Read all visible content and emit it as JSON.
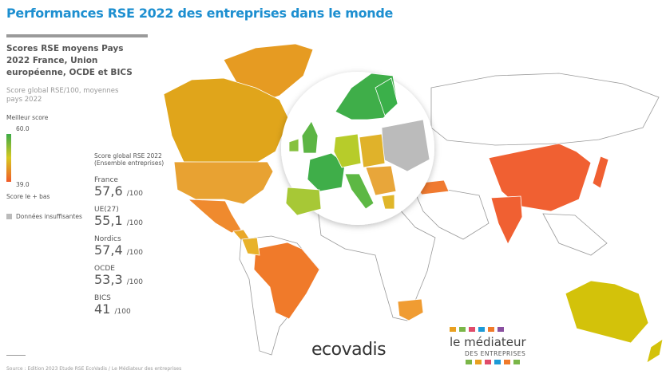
{
  "header": {
    "title": "Performances RSE 2022 des entreprises dans le monde"
  },
  "intro": {
    "subtitle": "Scores RSE moyens Pays 2022 France, Union européenne, OCDE et BICS",
    "description": "Score global RSE/100, moyennes pays 2022"
  },
  "legend": {
    "top_label": "Meilleur score",
    "max": "60.0",
    "min": "39.0",
    "bottom_label": "Score le + bas",
    "missing": "Données insuffisantes"
  },
  "scores": {
    "heading": "Score global RSE 2022 (Ensemble entreprises)",
    "entries": [
      {
        "name": "France",
        "score": "57,6",
        "unit": "/100"
      },
      {
        "name": "UE(27)",
        "score": "55,1",
        "unit": "/100"
      },
      {
        "name": "Nordics",
        "score": "57,4",
        "unit": "/100"
      },
      {
        "name": "OCDE",
        "score": "53,3",
        "unit": "/100"
      },
      {
        "name": "BICS",
        "score": "41",
        "unit": "/100"
      }
    ]
  },
  "logos": {
    "ecovadis": "ecovadis",
    "mediateur": "le médiateur",
    "mediateur_sub": "DES ENTREPRISES"
  },
  "footer": {
    "source": "Source : Edition 2023 Etude RSE EcoVadis / Le Médiateur des entreprises"
  }
}
